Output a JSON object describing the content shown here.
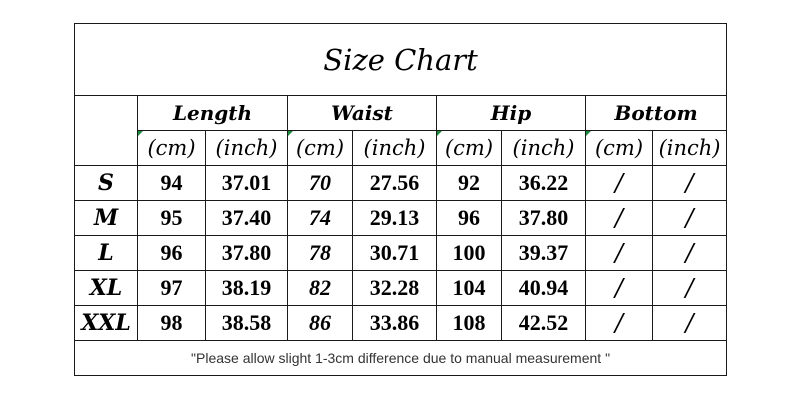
{
  "title": "Size Chart",
  "groups": [
    "Length",
    "Waist",
    "Hip",
    "Bottom"
  ],
  "units": [
    "(cm)",
    "(inch)"
  ],
  "rows": [
    {
      "size": "S",
      "length_cm": "94",
      "length_in": "37.01",
      "waist_cm": "70",
      "waist_in": "27.56",
      "hip_cm": "92",
      "hip_in": "36.22",
      "bottom_cm": "/",
      "bottom_in": "/"
    },
    {
      "size": "M",
      "length_cm": "95",
      "length_in": "37.40",
      "waist_cm": "74",
      "waist_in": "29.13",
      "hip_cm": "96",
      "hip_in": "37.80",
      "bottom_cm": "/",
      "bottom_in": "/"
    },
    {
      "size": "L",
      "length_cm": "96",
      "length_in": "37.80",
      "waist_cm": "78",
      "waist_in": "30.71",
      "hip_cm": "100",
      "hip_in": "39.37",
      "bottom_cm": "/",
      "bottom_in": "/"
    },
    {
      "size": "XL",
      "length_cm": "97",
      "length_in": "38.19",
      "waist_cm": "82",
      "waist_in": "32.28",
      "hip_cm": "104",
      "hip_in": "40.94",
      "bottom_cm": "/",
      "bottom_in": "/"
    },
    {
      "size": "XXL",
      "length_cm": "98",
      "length_in": "38.58",
      "waist_cm": "86",
      "waist_in": "33.86",
      "hip_cm": "108",
      "hip_in": "42.52",
      "bottom_cm": "/",
      "bottom_in": "/"
    }
  ],
  "note": "\"Please allow slight 1-3cm difference due to manual measurement \""
}
